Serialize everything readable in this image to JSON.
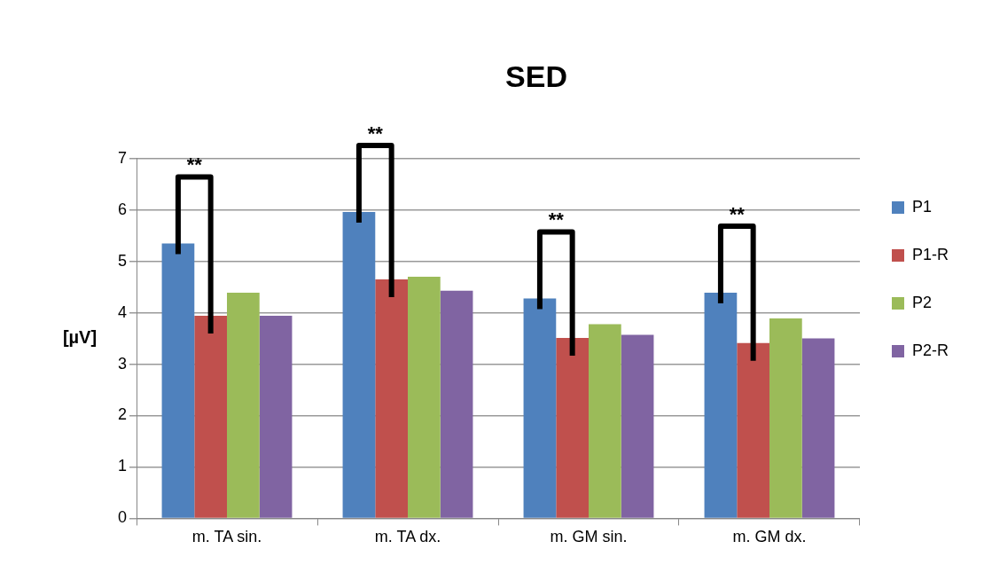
{
  "chart_data": {
    "type": "bar",
    "title": "SED",
    "ylabel": "[µV]",
    "categories": [
      "m. TA sin.",
      "m. TA dx.",
      "m. GM sin.",
      "m. GM dx."
    ],
    "series": [
      {
        "name": "P1",
        "color": "#4f81bd",
        "values": [
          5.35,
          5.96,
          4.28,
          4.39
        ]
      },
      {
        "name": "P1-R",
        "color": "#c0504d",
        "values": [
          3.94,
          4.65,
          3.51,
          3.41
        ]
      },
      {
        "name": "P2",
        "color": "#9bbb59",
        "values": [
          4.39,
          4.7,
          3.78,
          3.89
        ]
      },
      {
        "name": "P2-R",
        "color": "#8064a2",
        "values": [
          3.94,
          4.43,
          3.57,
          3.5
        ]
      }
    ],
    "ylim": [
      0,
      7
    ],
    "yticks": [
      0,
      1,
      2,
      3,
      4,
      5,
      6,
      7
    ],
    "grid": "y",
    "legend": "right",
    "annotations": [
      "**",
      "**",
      "**",
      "**"
    ]
  }
}
